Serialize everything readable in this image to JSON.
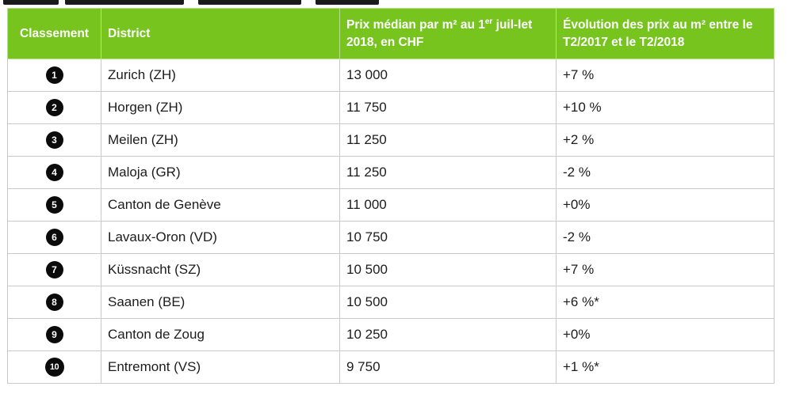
{
  "table": {
    "headers": {
      "rank": "Classement",
      "district": "District",
      "price_before_sup": "Prix médian par m² au 1",
      "price_sup": "er",
      "price_after_sup": " juil-let 2018, en CHF",
      "evolution": "Évolution des prix au m² entre le T2/2017 et le T2/2018"
    },
    "rows": [
      {
        "rank": "1",
        "district": "Zurich (ZH)",
        "price": "13 000",
        "change": "+7 %"
      },
      {
        "rank": "2",
        "district": "Horgen (ZH)",
        "price": "11 750",
        "change": "+10 %"
      },
      {
        "rank": "3",
        "district": "Meilen (ZH)",
        "price": "11 250",
        "change": "+2 %"
      },
      {
        "rank": "4",
        "district": "Maloja (GR)",
        "price": "11 250",
        "change": "-2 %"
      },
      {
        "rank": "5",
        "district": "Canton de Genève",
        "price": "11 000",
        "change": "+0%"
      },
      {
        "rank": "6",
        "district": "Lavaux-Oron (VD)",
        "price": "10 750",
        "change": "-2 %"
      },
      {
        "rank": "7",
        "district": "Küssnacht (SZ)",
        "price": "10 500",
        "change": "+7 %"
      },
      {
        "rank": "8",
        "district": "Saanen (BE)",
        "price": "10 500",
        "change": "+6 %*"
      },
      {
        "rank": "9",
        "district": "Canton de Zoug",
        "price": "10 250",
        "change": "+0%"
      },
      {
        "rank": "10",
        "district": "Entremont (VS)",
        "price": "9 750",
        "change": "+1 %*"
      }
    ]
  },
  "colors": {
    "header_background": "#77c41f",
    "header_text": "#ffffff",
    "badge_background": "#0b0b0b",
    "grid_line": "#c9c9c9"
  }
}
